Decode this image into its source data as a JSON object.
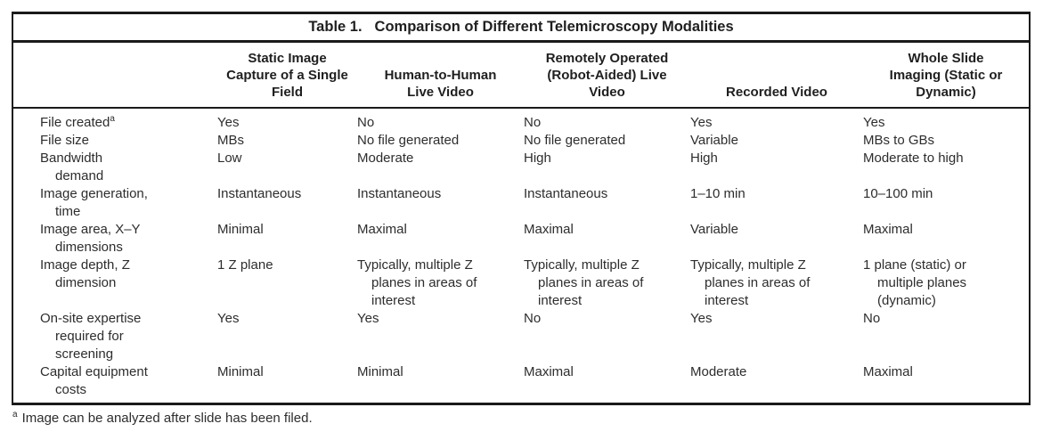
{
  "table": {
    "title_label": "Table 1.",
    "title_text": "Comparison of Different Telemicroscopy Modalities",
    "columns": [
      {
        "label": ""
      },
      {
        "label": "Static Image\nCapture of a Single\nField"
      },
      {
        "label": "Human-to-Human\nLive Video"
      },
      {
        "label": "Remotely Operated\n(Robot-Aided) Live\nVideo"
      },
      {
        "label": "Recorded Video"
      },
      {
        "label": "Whole Slide\nImaging (Static or\nDynamic)"
      }
    ],
    "rows": [
      {
        "label": "File created",
        "sup": "a",
        "cells": [
          "Yes",
          "No",
          "No",
          "Yes",
          "Yes"
        ]
      },
      {
        "label": "File size",
        "cells": [
          "MBs",
          "No file generated",
          "No file generated",
          "Variable",
          "MBs to GBs"
        ]
      },
      {
        "label": "Bandwidth\ndemand",
        "cells": [
          "Low",
          "Moderate",
          "High",
          "High",
          "Moderate to high"
        ]
      },
      {
        "label": "Image generation,\ntime",
        "cells": [
          "Instantaneous",
          "Instantaneous",
          "Instantaneous",
          "1–10 min",
          "10–100 min"
        ]
      },
      {
        "label": "Image area, X–Y\ndimensions",
        "cells": [
          "Minimal",
          "Maximal",
          "Maximal",
          "Variable",
          "Maximal"
        ]
      },
      {
        "label": "Image depth, Z\ndimension",
        "cells": [
          "1 Z plane",
          "Typically, multiple Z\nplanes in areas of\ninterest",
          "Typically, multiple Z\nplanes in areas of\ninterest",
          "Typically, multiple Z\nplanes in areas of\ninterest",
          "1 plane (static) or\nmultiple planes\n(dynamic)"
        ]
      },
      {
        "label": "On-site expertise\nrequired for\nscreening",
        "cells": [
          "Yes",
          "Yes",
          "No",
          "Yes",
          "No"
        ]
      },
      {
        "label": "Capital equipment\ncosts",
        "cells": [
          "Minimal",
          "Minimal",
          "Maximal",
          "Moderate",
          "Maximal"
        ]
      }
    ],
    "footnote_marker": "a",
    "footnote_text": "Image can be analyzed after slide has been filed."
  }
}
